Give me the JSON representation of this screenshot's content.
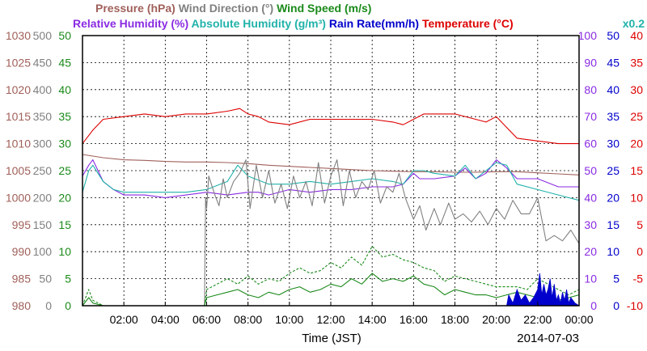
{
  "colors": {
    "pressure": "#a0605a",
    "wind_direction": "#808080",
    "wind_speed": "#1a8a1a",
    "relative_humidity": "#8a2be2",
    "absolute_humidity": "#20b2aa",
    "rain_rate": "#0000cc",
    "temperature": "#dd0000",
    "grid": "#000000",
    "background": "#ffffff"
  },
  "chart_data": {
    "type": "line",
    "header": {
      "row1": [
        {
          "text": "Pressure (hPa)",
          "color": "#a0605a"
        },
        {
          "text": "Wind Direction (°)",
          "color": "#808080"
        },
        {
          "text": "Wind Speed (m/s)",
          "color": "#1a8a1a"
        }
      ],
      "row2": [
        {
          "text": "Relative Humidity (%)",
          "color": "#8a2be2"
        },
        {
          "text": "Absolute Humidity (g/m³)",
          "color": "#20b2aa"
        },
        {
          "text": "Rain Rate(mm/h)",
          "color": "#0000cc"
        },
        {
          "text": "Temperature (°C)",
          "color": "#dd0000"
        }
      ],
      "scale_note": {
        "text": "x0.2",
        "color": "#20b2aa"
      }
    },
    "xlabel": "Time (JST)",
    "date": "2014-07-03",
    "xlim": [
      0,
      24
    ],
    "x_ticks": [
      {
        "value": 2,
        "label": "02:00"
      },
      {
        "value": 4,
        "label": "04:00"
      },
      {
        "value": 6,
        "label": "06:00"
      },
      {
        "value": 8,
        "label": "08:00"
      },
      {
        "value": 10,
        "label": "10:00"
      },
      {
        "value": 12,
        "label": "12:00"
      },
      {
        "value": 14,
        "label": "14:00"
      },
      {
        "value": 16,
        "label": "16:00"
      },
      {
        "value": 18,
        "label": "18:00"
      },
      {
        "value": 20,
        "label": "20:00"
      },
      {
        "value": 22,
        "label": "22:00"
      },
      {
        "value": 24,
        "label": "00:00"
      }
    ],
    "grid": true,
    "axes": {
      "left": [
        {
          "name": "pressure",
          "color": "#a0605a",
          "ylim": [
            980,
            1030
          ],
          "ticks": [
            980,
            985,
            990,
            995,
            1000,
            1005,
            1010,
            1015,
            1020,
            1025,
            1030
          ]
        },
        {
          "name": "wind_direction",
          "color": "#808080",
          "ylim": [
            0,
            500
          ],
          "ticks": [
            0,
            50,
            100,
            150,
            200,
            250,
            300,
            350,
            400,
            450,
            500
          ]
        },
        {
          "name": "wind_speed",
          "color": "#1a8a1a",
          "ylim": [
            0,
            50
          ],
          "ticks": [
            0,
            5,
            10,
            15,
            20,
            25,
            30,
            35,
            40,
            45,
            50
          ]
        }
      ],
      "right": [
        {
          "name": "relative_humidity",
          "color": "#8a2be2",
          "ylim": [
            0,
            100
          ],
          "ticks": [
            0,
            10,
            20,
            30,
            40,
            50,
            60,
            70,
            80,
            90,
            100
          ]
        },
        {
          "name": "rain_rate",
          "color": "#0000cc",
          "ylim": [
            0,
            50
          ],
          "ticks": [
            0,
            5,
            10,
            15,
            20,
            25,
            30,
            35,
            40,
            45,
            50
          ]
        },
        {
          "name": "temperature",
          "color": "#dd0000",
          "ylim": [
            -10,
            40
          ],
          "ticks": [
            -10,
            -5,
            0,
            5,
            10,
            15,
            20,
            25,
            30,
            35,
            40
          ]
        }
      ]
    },
    "series": [
      {
        "key": "temperature",
        "color": "#dd0000",
        "axis": "temperature",
        "x": [
          0,
          0.5,
          1,
          2,
          3,
          4,
          5,
          6,
          7,
          7.6,
          8,
          8.5,
          9,
          10,
          11,
          12,
          13,
          14,
          15,
          15.5,
          16,
          16.5,
          17,
          18,
          19,
          19.5,
          20,
          20.5,
          21,
          22,
          23,
          24
        ],
        "y": [
          20,
          22.5,
          24.5,
          25,
          25.5,
          25,
          25.5,
          25.5,
          26,
          26.5,
          25.5,
          25,
          24,
          23.5,
          24.5,
          24.5,
          24.5,
          24.5,
          24,
          23.5,
          24.5,
          25.5,
          25.5,
          25.5,
          24.5,
          24,
          25,
          23,
          21,
          20.5,
          20,
          20
        ]
      },
      {
        "key": "pressure",
        "color": "#a0605a",
        "axis": "pressure",
        "x": [
          0,
          1,
          2,
          3,
          4,
          5,
          6,
          7,
          8,
          9,
          10,
          11,
          12,
          13,
          14,
          15,
          16,
          17,
          18,
          19,
          20,
          21,
          22,
          23,
          24
        ],
        "y": [
          1008,
          1007.4,
          1007,
          1006.9,
          1006.7,
          1006.6,
          1006.6,
          1006.5,
          1006.3,
          1006,
          1005.8,
          1005.6,
          1005.4,
          1005.2,
          1005,
          1004.9,
          1004.8,
          1004.8,
          1004.7,
          1004.7,
          1004.8,
          1004.8,
          1004.6,
          1004.4,
          1004.2
        ]
      },
      {
        "key": "relative_humidity",
        "color": "#8a2be2",
        "axis": "relative_humidity",
        "x": [
          0,
          0.3,
          0.5,
          1,
          1.5,
          2,
          3,
          4,
          5,
          6,
          7,
          8,
          8.5,
          9,
          10,
          11,
          12,
          13,
          14,
          15,
          15.5,
          16,
          16.3,
          17,
          18,
          18.5,
          19,
          19.5,
          20,
          20.5,
          21,
          22,
          23,
          24
        ],
        "y": [
          48,
          52,
          54,
          46,
          43,
          41,
          41,
          40,
          41,
          42,
          41,
          42,
          42,
          41,
          43,
          42,
          43,
          43,
          44,
          44,
          45,
          49,
          47,
          47,
          48,
          51,
          47,
          49,
          54,
          51,
          47,
          47,
          44,
          44
        ]
      },
      {
        "key": "absolute_humidity",
        "color": "#20b2aa",
        "axis": "relative_humidity",
        "x": [
          0,
          0.3,
          0.5,
          1,
          1.5,
          2,
          3,
          4,
          5,
          6,
          7,
          7.5,
          8,
          9,
          10,
          11,
          12,
          13,
          14,
          15,
          15.5,
          16,
          16.5,
          17,
          18,
          18.5,
          19,
          19.5,
          20,
          20.5,
          21,
          22,
          23,
          24
        ],
        "y": [
          42,
          50,
          52,
          46,
          43,
          42,
          42,
          42,
          42,
          43,
          46,
          52,
          48,
          45,
          45,
          46,
          45,
          46,
          47,
          46,
          45,
          50,
          50,
          49,
          48,
          52,
          47,
          50,
          53,
          52,
          45,
          43,
          41,
          39
        ]
      },
      {
        "key": "wind_direction",
        "color": "#808080",
        "axis": "wind_direction",
        "x": [
          0,
          0.3,
          0.35,
          5.9,
          5.95,
          6,
          6.1,
          6.4,
          6.6,
          6.8,
          7,
          7.3,
          7.6,
          7.9,
          8.1,
          8.4,
          8.7,
          9,
          9.3,
          9.6,
          9.9,
          10.2,
          10.5,
          10.8,
          11.1,
          11.4,
          11.7,
          12,
          12.3,
          12.6,
          12.9,
          13.2,
          13.5,
          13.8,
          14.1,
          14.4,
          14.7,
          15,
          15.3,
          15.6,
          16,
          16.3,
          16.6,
          17,
          17.3,
          17.7,
          18,
          18.4,
          18.8,
          19.2,
          19.6,
          20,
          20.4,
          20.8,
          21.2,
          21.6,
          22,
          22.4,
          22.8,
          23.2,
          23.6,
          24
        ],
        "y": [
          0,
          0,
          0,
          0,
          200,
          180,
          240,
          205,
          185,
          235,
          200,
          230,
          245,
          270,
          180,
          260,
          200,
          250,
          190,
          225,
          180,
          240,
          200,
          230,
          185,
          265,
          190,
          240,
          270,
          185,
          250,
          200,
          230,
          215,
          250,
          190,
          220,
          210,
          245,
          200,
          160,
          185,
          140,
          180,
          150,
          190,
          160,
          170,
          155,
          175,
          150,
          180,
          160,
          195,
          170,
          170,
          200,
          120,
          130,
          120,
          140,
          115
        ]
      },
      {
        "key": "wind_speed",
        "color": "#1a8a1a",
        "axis": "wind_speed",
        "x": [
          0,
          0.3,
          0.5,
          1,
          2,
          3,
          4,
          5,
          5.9,
          6,
          6.5,
          7,
          7.5,
          8,
          8.5,
          9,
          9.5,
          10,
          10.5,
          11,
          11.5,
          12,
          12.5,
          13,
          13.5,
          14,
          14.5,
          15,
          15.5,
          16,
          16.5,
          17,
          17.5,
          18,
          18.5,
          19,
          19.5,
          20,
          20.5,
          21,
          21.5,
          22,
          22.5,
          23,
          23.5,
          24
        ],
        "y": [
          0,
          1.5,
          0.5,
          0,
          0,
          0,
          0,
          0,
          0,
          1.5,
          2,
          2.5,
          3,
          2,
          1.5,
          2.5,
          2,
          3,
          3.5,
          2.5,
          3,
          4,
          3.5,
          5,
          4,
          6,
          4.5,
          5,
          4.5,
          5.5,
          4,
          3.5,
          2,
          3,
          2.5,
          2,
          2,
          1.5,
          2,
          2.5,
          2,
          1.5,
          2,
          1,
          1.5,
          2
        ]
      },
      {
        "key": "wind_gust",
        "color": "#1a8a1a",
        "axis": "wind_speed",
        "dashed": true,
        "x": [
          0,
          0.3,
          0.5,
          1,
          2,
          3,
          4,
          5,
          5.9,
          6,
          6.5,
          7,
          7.5,
          8,
          8.5,
          9,
          9.5,
          10,
          10.5,
          11,
          11.5,
          12,
          12.5,
          13,
          13.5,
          14,
          14.5,
          15,
          15.5,
          16,
          16.5,
          17,
          17.5,
          18,
          18.5,
          19,
          19.5,
          20,
          20.5,
          21,
          21.5,
          22,
          22.5,
          23,
          23.5,
          24
        ],
        "y": [
          0,
          3,
          1,
          0,
          0,
          0,
          0,
          0,
          0,
          3,
          4,
          5,
          4,
          5.5,
          4,
          5,
          4.5,
          6,
          7,
          6,
          6.5,
          8,
          7,
          9,
          7.5,
          11,
          9,
          9.5,
          8.5,
          8,
          7,
          6.5,
          4.5,
          5.5,
          5,
          4.5,
          4,
          3.5,
          3.5,
          3.5,
          3,
          5,
          4,
          3,
          2,
          3
        ]
      },
      {
        "key": "rain_rate",
        "color": "#0000cc",
        "axis": "rain_rate",
        "fill": true,
        "x": [
          0,
          20.5,
          20.6,
          20.8,
          21,
          21.2,
          21.4,
          21.6,
          21.8,
          22,
          22.1,
          22.2,
          22.3,
          22.4,
          22.5,
          22.6,
          22.7,
          22.8,
          22.9,
          23,
          23.1,
          23.2,
          23.3,
          23.4,
          23.5,
          23.6,
          23.7,
          23.8,
          24
        ],
        "y": [
          0,
          0,
          2,
          0.5,
          3,
          1,
          2,
          0.5,
          1.5,
          3,
          6,
          2,
          4,
          2,
          3,
          5,
          1.5,
          4,
          1,
          2,
          0.5,
          2.5,
          1,
          3,
          0.5,
          1.5,
          1,
          0.5,
          0
        ]
      }
    ]
  }
}
